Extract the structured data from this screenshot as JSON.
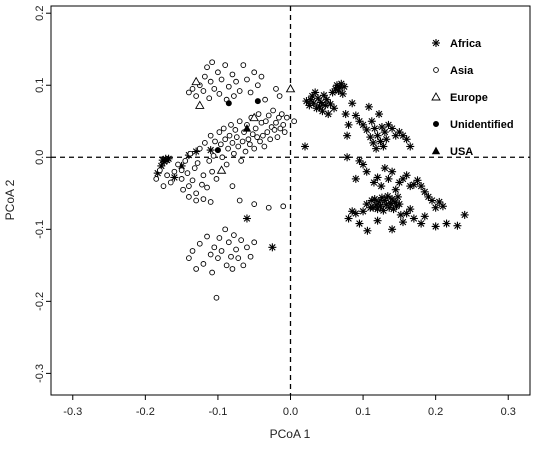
{
  "chart_data": {
    "type": "scatter",
    "title": "",
    "xlabel": "PCoA 1",
    "ylabel": "PCoA 2",
    "xlim": [
      -0.33,
      0.33
    ],
    "ylim": [
      -0.33,
      0.21
    ],
    "xticks": [
      -0.3,
      -0.2,
      -0.1,
      0.0,
      0.1,
      0.2,
      0.3
    ],
    "yticks": [
      -0.3,
      -0.2,
      -0.1,
      0.0,
      0.1,
      0.2
    ],
    "xtick_labels": [
      "-0.3",
      "-0.2",
      "-0.1",
      "0.0",
      "0.1",
      "0.2",
      "0.3"
    ],
    "ytick_labels": [
      "-0.3",
      "-0.2",
      "-0.1",
      "0.0",
      "0.1",
      "0.2"
    ],
    "reference_lines": {
      "x": 0,
      "y": 0,
      "style": "dashed"
    },
    "grid": false,
    "legend_position": "top-right",
    "series": [
      {
        "name": "Africa",
        "marker": "asterisk",
        "points": [
          [
            -0.183,
            -0.022
          ],
          [
            -0.178,
            -0.012
          ],
          [
            -0.176,
            -0.004
          ],
          [
            -0.174,
            -0.006
          ],
          [
            -0.172,
            -0.002
          ],
          [
            -0.17,
            -0.004
          ],
          [
            -0.168,
            -0.002
          ],
          [
            -0.16,
            -0.028
          ],
          [
            -0.15,
            -0.012
          ],
          [
            -0.14,
            0.003
          ],
          [
            -0.13,
            0.008
          ],
          [
            -0.11,
            0.01
          ],
          [
            -0.06,
            -0.085
          ],
          [
            -0.025,
            -0.125
          ],
          [
            0.02,
            0.015
          ],
          [
            0.022,
            0.078
          ],
          [
            0.026,
            0.072
          ],
          [
            0.028,
            0.08
          ],
          [
            0.03,
            0.085
          ],
          [
            0.032,
            0.075
          ],
          [
            0.034,
            0.09
          ],
          [
            0.036,
            0.068
          ],
          [
            0.038,
            0.082
          ],
          [
            0.04,
            0.07
          ],
          [
            0.042,
            0.076
          ],
          [
            0.044,
            0.064
          ],
          [
            0.046,
            0.086
          ],
          [
            0.048,
            0.072
          ],
          [
            0.05,
            0.08
          ],
          [
            0.052,
            0.06
          ],
          [
            0.055,
            0.074
          ],
          [
            0.058,
            0.09
          ],
          [
            0.06,
            0.068
          ],
          [
            0.062,
            0.095
          ],
          [
            0.064,
            0.1
          ],
          [
            0.066,
            0.092
          ],
          [
            0.068,
            0.097
          ],
          [
            0.07,
            0.102
          ],
          [
            0.072,
            0.088
          ],
          [
            0.074,
            0.098
          ],
          [
            0.076,
            0.06
          ],
          [
            0.078,
            0.03
          ],
          [
            0.08,
            0.045
          ],
          [
            0.085,
            0.075
          ],
          [
            0.09,
            0.058
          ],
          [
            0.095,
            0.05
          ],
          [
            0.1,
            0.045
          ],
          [
            0.105,
            0.038
          ],
          [
            0.108,
            0.07
          ],
          [
            0.11,
            0.028
          ],
          [
            0.112,
            0.05
          ],
          [
            0.114,
            0.02
          ],
          [
            0.116,
            0.04
          ],
          [
            0.118,
            0.012
          ],
          [
            0.12,
            0.03
          ],
          [
            0.122,
            0.06
          ],
          [
            0.124,
            0.022
          ],
          [
            0.126,
            0.042
          ],
          [
            0.128,
            0.015
          ],
          [
            0.13,
            0.035
          ],
          [
            0.132,
            0.025
          ],
          [
            0.135,
            0.045
          ],
          [
            0.14,
            0.04
          ],
          [
            0.145,
            0.03
          ],
          [
            0.15,
            0.035
          ],
          [
            0.155,
            0.03
          ],
          [
            0.16,
            0.025
          ],
          [
            0.165,
            0.015
          ],
          [
            0.078,
            0.0
          ],
          [
            0.09,
            -0.03
          ],
          [
            0.095,
            -0.005
          ],
          [
            0.1,
            -0.01
          ],
          [
            0.105,
            -0.02
          ],
          [
            0.115,
            -0.035
          ],
          [
            0.12,
            -0.028
          ],
          [
            0.125,
            -0.04
          ],
          [
            0.13,
            -0.015
          ],
          [
            0.135,
            -0.03
          ],
          [
            0.14,
            -0.02
          ],
          [
            0.145,
            -0.045
          ],
          [
            0.15,
            -0.035
          ],
          [
            0.155,
            -0.03
          ],
          [
            0.16,
            -0.025
          ],
          [
            0.165,
            -0.04
          ],
          [
            0.17,
            -0.038
          ],
          [
            0.175,
            -0.032
          ],
          [
            0.18,
            -0.04
          ],
          [
            0.185,
            -0.048
          ],
          [
            0.19,
            -0.055
          ],
          [
            0.195,
            -0.06
          ],
          [
            0.2,
            -0.07
          ],
          [
            0.205,
            -0.062
          ],
          [
            0.21,
            -0.068
          ],
          [
            0.215,
            -0.092
          ],
          [
            0.23,
            -0.095
          ],
          [
            0.24,
            -0.08
          ],
          [
            0.08,
            -0.085
          ],
          [
            0.085,
            -0.075
          ],
          [
            0.09,
            -0.078
          ],
          [
            0.095,
            -0.092
          ],
          [
            0.1,
            -0.075
          ],
          [
            0.105,
            -0.065
          ],
          [
            0.11,
            -0.07
          ],
          [
            0.112,
            -0.06
          ],
          [
            0.114,
            -0.07
          ],
          [
            0.116,
            -0.058
          ],
          [
            0.118,
            -0.066
          ],
          [
            0.12,
            -0.072
          ],
          [
            0.122,
            -0.062
          ],
          [
            0.124,
            -0.068
          ],
          [
            0.126,
            -0.056
          ],
          [
            0.128,
            -0.074
          ],
          [
            0.13,
            -0.06
          ],
          [
            0.132,
            -0.066
          ],
          [
            0.134,
            -0.054
          ],
          [
            0.136,
            -0.07
          ],
          [
            0.138,
            -0.064
          ],
          [
            0.14,
            -0.058
          ],
          [
            0.142,
            -0.072
          ],
          [
            0.144,
            -0.062
          ],
          [
            0.146,
            -0.068
          ],
          [
            0.148,
            -0.055
          ],
          [
            0.15,
            -0.065
          ],
          [
            0.152,
            -0.08
          ],
          [
            0.155,
            -0.09
          ],
          [
            0.16,
            -0.078
          ],
          [
            0.165,
            -0.072
          ],
          [
            0.17,
            -0.085
          ],
          [
            0.18,
            -0.092
          ],
          [
            0.185,
            -0.082
          ],
          [
            0.2,
            -0.096
          ],
          [
            0.14,
            -0.1
          ],
          [
            0.12,
            -0.088
          ],
          [
            0.106,
            -0.102
          ]
        ]
      },
      {
        "name": "Asia",
        "marker": "open-circle",
        "points": [
          [
            -0.185,
            -0.03
          ],
          [
            -0.18,
            -0.018
          ],
          [
            -0.175,
            -0.04
          ],
          [
            -0.17,
            -0.025
          ],
          [
            -0.165,
            -0.035
          ],
          [
            -0.16,
            -0.02
          ],
          [
            -0.155,
            -0.01
          ],
          [
            -0.15,
            -0.03
          ],
          [
            -0.148,
            -0.045
          ],
          [
            -0.145,
            -0.005
          ],
          [
            -0.142,
            -0.022
          ],
          [
            -0.14,
            -0.04
          ],
          [
            -0.138,
            0.005
          ],
          [
            -0.135,
            -0.032
          ],
          [
            -0.132,
            -0.015
          ],
          [
            -0.13,
            -0.05
          ],
          [
            -0.128,
            -0.008
          ],
          [
            -0.125,
            0.012
          ],
          [
            -0.122,
            -0.038
          ],
          [
            -0.12,
            -0.025
          ],
          [
            -0.118,
            0.02
          ],
          [
            -0.115,
            -0.042
          ],
          [
            -0.112,
            -0.005
          ],
          [
            -0.11,
            0.03
          ],
          [
            -0.108,
            -0.02
          ],
          [
            -0.106,
            0.002
          ],
          [
            -0.104,
            0.022
          ],
          [
            -0.102,
            -0.03
          ],
          [
            -0.1,
            0.01
          ],
          [
            -0.098,
            0.035
          ],
          [
            -0.096,
            0.018
          ],
          [
            -0.094,
            0.0
          ],
          [
            -0.092,
            0.04
          ],
          [
            -0.09,
            0.025
          ],
          [
            -0.088,
            -0.01
          ],
          [
            -0.086,
            0.012
          ],
          [
            -0.084,
            0.03
          ],
          [
            -0.082,
            0.045
          ],
          [
            -0.08,
            0.02
          ],
          [
            -0.078,
            0.005
          ],
          [
            -0.076,
            0.038
          ],
          [
            -0.074,
            0.028
          ],
          [
            -0.072,
            0.015
          ],
          [
            -0.07,
            0.05
          ],
          [
            -0.068,
            -0.005
          ],
          [
            -0.066,
            0.022
          ],
          [
            -0.064,
            0.035
          ],
          [
            -0.062,
            0.008
          ],
          [
            -0.06,
            0.045
          ],
          [
            -0.058,
            0.025
          ],
          [
            -0.056,
            0.018
          ],
          [
            -0.054,
            0.055
          ],
          [
            -0.052,
            0.032
          ],
          [
            -0.05,
            0.012
          ],
          [
            -0.048,
            0.04
          ],
          [
            -0.046,
            0.028
          ],
          [
            -0.044,
            0.06
          ],
          [
            -0.042,
            0.022
          ],
          [
            -0.04,
            0.048
          ],
          [
            -0.038,
            0.03
          ],
          [
            -0.036,
            0.015
          ],
          [
            -0.034,
            0.05
          ],
          [
            -0.032,
            0.035
          ],
          [
            -0.03,
            0.058
          ],
          [
            -0.028,
            0.025
          ],
          [
            -0.026,
            0.042
          ],
          [
            -0.024,
            0.065
          ],
          [
            -0.022,
            0.038
          ],
          [
            -0.02,
            0.048
          ],
          [
            -0.018,
            0.028
          ],
          [
            -0.016,
            0.055
          ],
          [
            -0.014,
            0.04
          ],
          [
            -0.012,
            0.06
          ],
          [
            -0.01,
            0.045
          ],
          [
            -0.008,
            0.035
          ],
          [
            -0.005,
            0.055
          ],
          [
            -0.14,
            0.09
          ],
          [
            -0.135,
            0.095
          ],
          [
            -0.13,
            0.085
          ],
          [
            -0.125,
            0.1
          ],
          [
            -0.12,
            0.092
          ],
          [
            -0.118,
            0.112
          ],
          [
            -0.115,
            0.125
          ],
          [
            -0.112,
            0.082
          ],
          [
            -0.11,
            0.105
          ],
          [
            -0.108,
            0.132
          ],
          [
            -0.105,
            0.095
          ],
          [
            -0.1,
            0.118
          ],
          [
            -0.098,
            0.088
          ],
          [
            -0.095,
            0.108
          ],
          [
            -0.09,
            0.128
          ],
          [
            -0.088,
            0.08
          ],
          [
            -0.085,
            0.098
          ],
          [
            -0.08,
            0.115
          ],
          [
            -0.078,
            0.085
          ],
          [
            -0.075,
            0.105
          ],
          [
            -0.07,
            0.092
          ],
          [
            -0.065,
            0.128
          ],
          [
            -0.06,
            0.108
          ],
          [
            -0.055,
            0.09
          ],
          [
            -0.05,
            0.118
          ],
          [
            -0.045,
            0.1
          ],
          [
            -0.04,
            0.112
          ],
          [
            -0.035,
            0.08
          ],
          [
            -0.02,
            0.095
          ],
          [
            -0.015,
            0.085
          ],
          [
            0.005,
            0.05
          ],
          [
            -0.15,
            -0.018
          ],
          [
            -0.14,
            -0.055
          ],
          [
            -0.13,
            -0.06
          ],
          [
            -0.12,
            -0.058
          ],
          [
            -0.11,
            -0.062
          ],
          [
            -0.08,
            -0.04
          ],
          [
            -0.07,
            -0.06
          ],
          [
            -0.05,
            -0.065
          ],
          [
            -0.03,
            -0.07
          ],
          [
            -0.01,
            -0.068
          ],
          [
            -0.14,
            -0.14
          ],
          [
            -0.135,
            -0.13
          ],
          [
            -0.13,
            -0.155
          ],
          [
            -0.125,
            -0.12
          ],
          [
            -0.12,
            -0.148
          ],
          [
            -0.115,
            -0.11
          ],
          [
            -0.11,
            -0.135
          ],
          [
            -0.108,
            -0.16
          ],
          [
            -0.105,
            -0.125
          ],
          [
            -0.102,
            -0.195
          ],
          [
            -0.1,
            -0.14
          ],
          [
            -0.098,
            -0.112
          ],
          [
            -0.095,
            -0.13
          ],
          [
            -0.09,
            -0.1
          ],
          [
            -0.088,
            -0.15
          ],
          [
            -0.085,
            -0.118
          ],
          [
            -0.082,
            -0.138
          ],
          [
            -0.08,
            -0.155
          ],
          [
            -0.078,
            -0.108
          ],
          [
            -0.075,
            -0.128
          ],
          [
            -0.072,
            -0.14
          ],
          [
            -0.068,
            -0.115
          ],
          [
            -0.065,
            -0.15
          ],
          [
            -0.06,
            -0.125
          ],
          [
            -0.055,
            -0.138
          ],
          [
            -0.05,
            -0.118
          ]
        ]
      },
      {
        "name": "Europe",
        "marker": "open-triangle",
        "points": [
          [
            -0.13,
            0.105
          ],
          [
            -0.125,
            0.072
          ],
          [
            -0.095,
            -0.018
          ],
          [
            -0.05,
            0.055
          ],
          [
            0.0,
            0.095
          ]
        ]
      },
      {
        "name": "Unidentified",
        "marker": "filled-circle",
        "points": [
          [
            -0.1,
            0.01
          ],
          [
            -0.085,
            0.075
          ],
          [
            -0.045,
            0.078
          ]
        ]
      },
      {
        "name": "USA",
        "marker": "filled-triangle",
        "points": [
          [
            -0.06,
            0.04
          ]
        ]
      }
    ]
  }
}
